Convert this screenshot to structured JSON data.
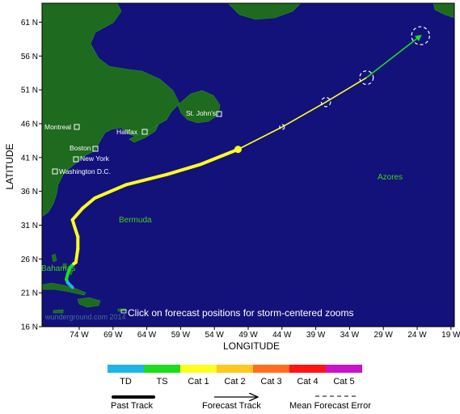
{
  "map": {
    "axis_x_label": "LONGITUDE",
    "axis_y_label": "LATITUDE",
    "lat_ticks": [
      "61 N",
      "56 N",
      "51 N",
      "46 N",
      "41 N",
      "36 N",
      "31 N",
      "26 N",
      "21 N",
      "16 N"
    ],
    "lon_ticks": [
      "74 W",
      "69 W",
      "64 W",
      "59 W",
      "54 W",
      "49 W",
      "44 W",
      "39 W",
      "34 W",
      "29 W",
      "24 W",
      "19 W"
    ],
    "ocean_color": "#12127a",
    "land_color": "#1e6a1e",
    "note": "Click on forecast positions for storm-centered zooms",
    "watermark": "wunderground.com 2014"
  },
  "cities": [
    {
      "name": "St. John's"
    },
    {
      "name": "Montreal"
    },
    {
      "name": "Halifax"
    },
    {
      "name": "Boston"
    },
    {
      "name": "New York"
    },
    {
      "name": "Washington D.C."
    }
  ],
  "regions": [
    {
      "name": "Bermuda"
    },
    {
      "name": "Azores"
    },
    {
      "name": "Bahamas"
    }
  ],
  "storm": {
    "past_track": [
      {
        "lon": -75.0,
        "lat": 21.8,
        "category": "TD"
      },
      {
        "lon": -75.7,
        "lat": 22.5,
        "category": "TD"
      },
      {
        "lon": -75.9,
        "lat": 23.0,
        "category": "TD"
      },
      {
        "lon": -75.7,
        "lat": 23.8,
        "category": "TS"
      },
      {
        "lon": -75.3,
        "lat": 24.8,
        "category": "TS"
      },
      {
        "lon": -74.8,
        "lat": 25.3,
        "category": "TS"
      },
      {
        "lon": -74.5,
        "lat": 25.5,
        "category": "Cat 1"
      },
      {
        "lon": -74.2,
        "lat": 27.5,
        "category": "Cat 1"
      },
      {
        "lon": -74.2,
        "lat": 29.3,
        "category": "Cat 1"
      },
      {
        "lon": -74.6,
        "lat": 30.5,
        "category": "Cat 1"
      },
      {
        "lon": -75.0,
        "lat": 31.8,
        "category": "Cat 1"
      },
      {
        "lon": -73.5,
        "lat": 33.5,
        "category": "Cat 1"
      },
      {
        "lon": -71.7,
        "lat": 35.0,
        "category": "Cat 1"
      },
      {
        "lon": -67.0,
        "lat": 37.0,
        "category": "Cat 1"
      },
      {
        "lon": -61.0,
        "lat": 38.5,
        "category": "Cat 1"
      },
      {
        "lon": -56.0,
        "lat": 40.0,
        "category": "Cat 1"
      },
      {
        "lon": -50.5,
        "lat": 42.2,
        "category": "Cat 1"
      }
    ],
    "forecast_track": [
      {
        "lon": -50.5,
        "lat": 42.2,
        "category": "Cat 1"
      },
      {
        "lon": -44.0,
        "lat": 45.5,
        "category": "Cat 1"
      },
      {
        "lon": -37.5,
        "lat": 49.2,
        "category": "Cat 1"
      },
      {
        "lon": -31.5,
        "lat": 52.8,
        "category": "Cat 1"
      },
      {
        "lon": -23.5,
        "lat": 59.0,
        "category": "TS"
      }
    ]
  },
  "legend": {
    "categories": [
      {
        "label": "TD",
        "color": "#1eb4e6"
      },
      {
        "label": "TS",
        "color": "#1edc1e"
      },
      {
        "label": "Cat 1",
        "color": "#ffff22"
      },
      {
        "label": "Cat 2",
        "color": "#ffc81e"
      },
      {
        "label": "Cat 3",
        "color": "#ff6e1e"
      },
      {
        "label": "Cat 4",
        "color": "#ff1414"
      },
      {
        "label": "Cat 5",
        "color": "#c814c8"
      }
    ],
    "past_track_label": "Past Track",
    "forecast_track_label": "Forecast Track",
    "error_label": "Mean Forecast Error"
  }
}
